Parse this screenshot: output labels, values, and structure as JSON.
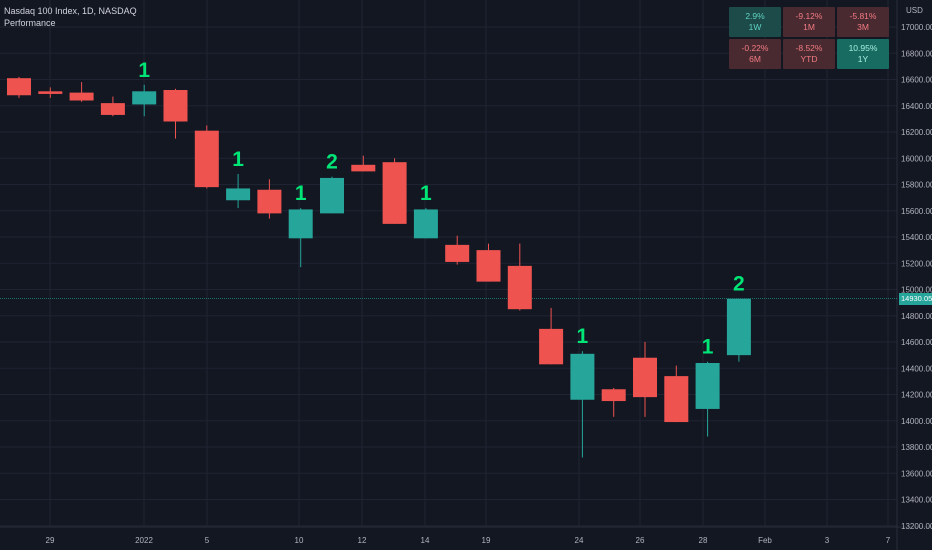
{
  "header": {
    "symbol_line": "Nasdaq 100 Index, 1D, NASDAQ",
    "indicator": "Performance"
  },
  "axis": {
    "currency": "USD",
    "y_ticks": [
      "17000.00",
      "16800.00",
      "16600.00",
      "16400.00",
      "16200.00",
      "16000.00",
      "15800.00",
      "15600.00",
      "15400.00",
      "15200.00",
      "15000.00",
      "14800.00",
      "14600.00",
      "14400.00",
      "14200.00",
      "14000.00",
      "13800.00",
      "13600.00",
      "13400.00",
      "13200.00"
    ],
    "x_ticks": [
      "29",
      "2022",
      "5",
      "10",
      "12",
      "14",
      "19",
      "24",
      "26",
      "28",
      "Feb",
      "3",
      "7"
    ],
    "last_price": "14930.05"
  },
  "performance": [
    {
      "value": "2.9%",
      "period": "1W",
      "tone": "pos"
    },
    {
      "value": "-9.12%",
      "period": "1M",
      "tone": "neg"
    },
    {
      "value": "-5.81%",
      "period": "3M",
      "tone": "neg"
    },
    {
      "value": "-0.22%",
      "period": "6M",
      "tone": "neg"
    },
    {
      "value": "-8.52%",
      "period": "YTD",
      "tone": "neg"
    },
    {
      "value": "10.95%",
      "period": "1Y",
      "tone": "pos-strong"
    }
  ],
  "colors": {
    "up": "#26a69a",
    "down": "#ef5350",
    "marker": "#00e676",
    "grid": "#1f2433",
    "background": "#131722"
  },
  "chart_data": {
    "type": "candlestick",
    "ylim": [
      13200,
      17100
    ],
    "candles": [
      {
        "x": 0,
        "open": 16610,
        "high": 16620,
        "low": 16460,
        "close": 16480
      },
      {
        "x": 1,
        "open": 16510,
        "high": 16540,
        "low": 16460,
        "close": 16490
      },
      {
        "x": 2,
        "open": 16500,
        "high": 16580,
        "low": 16430,
        "close": 16440
      },
      {
        "x": 3,
        "open": 16420,
        "high": 16470,
        "low": 16320,
        "close": 16330
      },
      {
        "x": 4,
        "open": 16410,
        "high": 16560,
        "low": 16320,
        "close": 16510,
        "marker": "1"
      },
      {
        "x": 5,
        "open": 16520,
        "high": 16530,
        "low": 16150,
        "close": 16280
      },
      {
        "x": 6,
        "open": 16210,
        "high": 16250,
        "low": 15770,
        "close": 15780
      },
      {
        "x": 7,
        "open": 15680,
        "high": 15880,
        "low": 15620,
        "close": 15770,
        "marker": "1"
      },
      {
        "x": 8,
        "open": 15760,
        "high": 15840,
        "low": 15540,
        "close": 15580
      },
      {
        "x": 9,
        "open": 15390,
        "high": 15620,
        "low": 15170,
        "close": 15610,
        "marker": "1"
      },
      {
        "x": 10,
        "open": 15580,
        "high": 15860,
        "low": 15580,
        "close": 15850,
        "marker": "2"
      },
      {
        "x": 11,
        "open": 15950,
        "high": 16020,
        "low": 15900,
        "close": 15900
      },
      {
        "x": 12,
        "open": 15970,
        "high": 16000,
        "low": 15500,
        "close": 15500
      },
      {
        "x": 13,
        "open": 15390,
        "high": 15620,
        "low": 15390,
        "close": 15610,
        "marker": "1"
      },
      {
        "x": 14,
        "open": 15340,
        "high": 15410,
        "low": 15190,
        "close": 15210
      },
      {
        "x": 15,
        "open": 15300,
        "high": 15350,
        "low": 15060,
        "close": 15060
      },
      {
        "x": 16,
        "open": 15180,
        "high": 15350,
        "low": 14840,
        "close": 14850
      },
      {
        "x": 17,
        "open": 14700,
        "high": 14860,
        "low": 14430,
        "close": 14430
      },
      {
        "x": 18,
        "open": 14160,
        "high": 14530,
        "low": 13720,
        "close": 14510,
        "marker": "1"
      },
      {
        "x": 19,
        "open": 14240,
        "high": 14250,
        "low": 14030,
        "close": 14150
      },
      {
        "x": 20,
        "open": 14480,
        "high": 14600,
        "low": 14030,
        "close": 14180
      },
      {
        "x": 21,
        "open": 14340,
        "high": 14420,
        "low": 13990,
        "close": 13990
      },
      {
        "x": 22,
        "open": 14090,
        "high": 14450,
        "low": 13880,
        "close": 14440,
        "marker": "1"
      },
      {
        "x": 23,
        "open": 14500,
        "high": 14930,
        "low": 14450,
        "close": 14930,
        "marker": "2"
      }
    ]
  }
}
